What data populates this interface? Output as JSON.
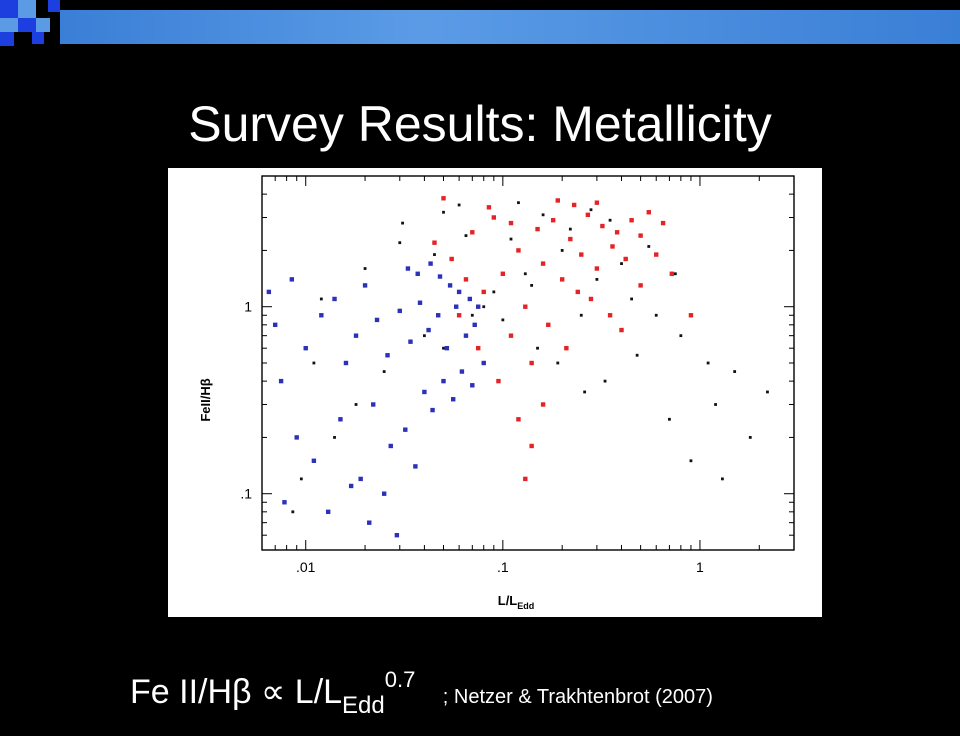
{
  "slide": {
    "title": "Survey Results: Metallicity",
    "formula": {
      "lhs": "Fe II/Hβ",
      "relation": "∝",
      "rhs_base": "L/L",
      "rhs_sub": "Edd",
      "rhs_sup": "0.7",
      "reference": "; Netzer & Trakhtenbrot (2007)"
    },
    "accent_colors": {
      "blue": "#1e3fe0",
      "light_blue": "#5b9be6"
    }
  },
  "chart_data": {
    "type": "scatter",
    "title": "",
    "xlabel": "L/L",
    "xlabel_sub": "Edd",
    "ylabel": "FeII/Hβ",
    "x_scale": "log",
    "y_scale": "log",
    "xlim": [
      0.006,
      3
    ],
    "ylim": [
      0.05,
      5
    ],
    "x_ticks": [
      {
        "value": 0.01,
        "label": ".01"
      },
      {
        "value": 0.1,
        "label": ".1"
      },
      {
        "value": 1,
        "label": "1"
      }
    ],
    "y_ticks": [
      {
        "value": 0.1,
        "label": ".1"
      },
      {
        "value": 1,
        "label": "1"
      }
    ],
    "series": [
      {
        "color": "#111111",
        "marker": "dot",
        "x": [
          0.0086,
          0.0095,
          0.014,
          0.011,
          0.031,
          0.05,
          0.06,
          0.12,
          0.16,
          0.22,
          0.28,
          0.35,
          0.05,
          0.07,
          0.09,
          0.13,
          0.2,
          0.3,
          0.45,
          0.6,
          0.8,
          1.1,
          1.2,
          1.5,
          1.8,
          2.2,
          0.018,
          0.025,
          0.04,
          0.08,
          0.1,
          0.15,
          0.25,
          0.33,
          0.48,
          0.7,
          0.9,
          1.3,
          0.012,
          0.02,
          0.03,
          0.045,
          0.065,
          0.11,
          0.14,
          0.19,
          0.26,
          0.4,
          0.55,
          0.75
        ],
        "y": [
          0.08,
          0.12,
          0.2,
          0.5,
          2.8,
          3.2,
          3.5,
          3.6,
          3.1,
          2.6,
          3.3,
          2.9,
          0.6,
          0.9,
          1.2,
          1.5,
          2.0,
          1.4,
          1.1,
          0.9,
          0.7,
          0.5,
          0.3,
          0.45,
          0.2,
          0.35,
          0.3,
          0.45,
          0.7,
          1.0,
          0.85,
          0.6,
          0.9,
          0.4,
          0.55,
          0.25,
          0.15,
          0.12,
          1.1,
          1.6,
          2.2,
          1.9,
          2.4,
          2.3,
          1.3,
          0.5,
          0.35,
          1.7,
          2.1,
          1.5
        ]
      },
      {
        "color": "#e52225",
        "marker": "square",
        "x": [
          0.045,
          0.055,
          0.07,
          0.09,
          0.12,
          0.15,
          0.18,
          0.22,
          0.27,
          0.32,
          0.38,
          0.45,
          0.55,
          0.65,
          0.08,
          0.1,
          0.13,
          0.16,
          0.2,
          0.25,
          0.3,
          0.36,
          0.42,
          0.5,
          0.6,
          0.72,
          0.06,
          0.11,
          0.14,
          0.17,
          0.21,
          0.28,
          0.35,
          0.4,
          0.12,
          0.14,
          0.16,
          0.05,
          0.085,
          0.19,
          0.23,
          0.3,
          0.5,
          0.9,
          0.095,
          0.13,
          0.075,
          0.065,
          0.11,
          0.24
        ],
        "y": [
          2.2,
          1.8,
          2.5,
          3.0,
          2.0,
          2.6,
          2.9,
          2.3,
          3.1,
          2.7,
          2.5,
          2.9,
          3.2,
          2.8,
          1.2,
          1.5,
          1.0,
          1.7,
          1.4,
          1.9,
          1.6,
          2.1,
          1.8,
          2.4,
          1.9,
          1.5,
          0.9,
          0.7,
          0.5,
          0.8,
          0.6,
          1.1,
          0.9,
          0.75,
          0.25,
          0.18,
          0.3,
          3.8,
          3.4,
          3.7,
          3.5,
          3.6,
          1.3,
          0.9,
          0.4,
          0.12,
          0.6,
          1.4,
          2.8,
          1.2
        ]
      },
      {
        "color": "#2b31b8",
        "marker": "square",
        "x": [
          0.0065,
          0.007,
          0.0075,
          0.0085,
          0.01,
          0.012,
          0.014,
          0.016,
          0.018,
          0.02,
          0.023,
          0.026,
          0.03,
          0.034,
          0.038,
          0.042,
          0.047,
          0.052,
          0.058,
          0.065,
          0.072,
          0.08,
          0.009,
          0.011,
          0.015,
          0.019,
          0.022,
          0.027,
          0.032,
          0.036,
          0.04,
          0.044,
          0.05,
          0.056,
          0.062,
          0.07,
          0.0078,
          0.013,
          0.017,
          0.021,
          0.025,
          0.029,
          0.033,
          0.037,
          0.043,
          0.048,
          0.054,
          0.06,
          0.068,
          0.075
        ],
        "y": [
          1.2,
          0.8,
          0.4,
          1.4,
          0.6,
          0.9,
          1.1,
          0.5,
          0.7,
          1.3,
          0.85,
          0.55,
          0.95,
          0.65,
          1.05,
          0.75,
          0.9,
          0.6,
          1.0,
          0.7,
          0.8,
          0.5,
          0.2,
          0.15,
          0.25,
          0.12,
          0.3,
          0.18,
          0.22,
          0.14,
          0.35,
          0.28,
          0.4,
          0.32,
          0.45,
          0.38,
          0.09,
          0.08,
          0.11,
          0.07,
          0.1,
          0.06,
          1.6,
          1.5,
          1.7,
          1.45,
          1.3,
          1.2,
          1.1,
          1.0
        ]
      }
    ]
  }
}
